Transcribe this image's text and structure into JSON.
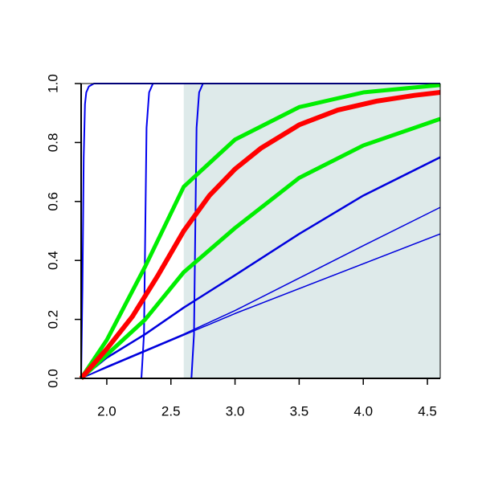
{
  "chart_data": {
    "type": "line",
    "xlim": [
      1.8,
      4.6
    ],
    "ylim": [
      0,
      1
    ],
    "xticks": [
      {
        "value": 2.0,
        "label": "2.0"
      },
      {
        "value": 2.5,
        "label": "2.5"
      },
      {
        "value": 3.0,
        "label": "3.0"
      },
      {
        "value": 3.5,
        "label": "3.5"
      },
      {
        "value": 4.0,
        "label": "4.0"
      },
      {
        "value": 4.5,
        "label": "4.5"
      }
    ],
    "yticks": [
      {
        "value": 0.0,
        "label": "0.0"
      },
      {
        "value": 0.2,
        "label": "0.2"
      },
      {
        "value": 0.4,
        "label": "0.4"
      },
      {
        "value": 0.6,
        "label": "0.6"
      },
      {
        "value": 0.8,
        "label": "0.8"
      },
      {
        "value": 1.0,
        "label": "1.0"
      }
    ],
    "shade": {
      "x": [
        2.6,
        4.6
      ],
      "y": [
        0,
        1
      ],
      "color": "#deeaea"
    },
    "series": [
      {
        "color": "#0000dd",
        "line_width": 1.5,
        "x": [
          1.8,
          3.0,
          4.6
        ],
        "values": [
          0,
          0.22,
          0.49
        ]
      },
      {
        "color": "#0000dd",
        "line_width": 1.5,
        "x": [
          1.8,
          2.0,
          2.6,
          3.0,
          3.5,
          4.0,
          4.6
        ],
        "values": [
          0,
          0.04,
          0.15,
          0.23,
          0.34,
          0.45,
          0.58
        ]
      },
      {
        "color": "#0000dd",
        "line_width": 2.5,
        "x": [
          1.8,
          2.0,
          2.3,
          2.6,
          3.0,
          3.5,
          4.0,
          4.6
        ],
        "values": [
          0,
          0.07,
          0.15,
          0.24,
          0.35,
          0.49,
          0.62,
          0.75
        ]
      },
      {
        "color": "#0000ee",
        "line_width": 2,
        "x": [
          1.8,
          1.81,
          1.82,
          1.83,
          1.84,
          1.86,
          1.9,
          4.6
        ],
        "values": [
          0,
          0.3,
          0.75,
          0.93,
          0.97,
          0.99,
          1.0,
          1.0
        ]
      },
      {
        "color": "#0000ee",
        "line_width": 2,
        "x": [
          1.8,
          2.27,
          2.29,
          2.3,
          2.31,
          2.33,
          2.36,
          4.6
        ],
        "values": [
          0,
          0.0,
          0.15,
          0.5,
          0.85,
          0.97,
          1.0,
          1.0
        ]
      },
      {
        "color": "#0000ee",
        "line_width": 2,
        "x": [
          1.8,
          2.66,
          2.68,
          2.69,
          2.7,
          2.72,
          2.75,
          4.6
        ],
        "values": [
          0,
          0.0,
          0.15,
          0.5,
          0.85,
          0.97,
          1.0,
          1.0
        ]
      },
      {
        "color": "#00ee00",
        "line_width": 5,
        "x": [
          1.8,
          2.0,
          2.3,
          2.6,
          3.0,
          3.5,
          4.0,
          4.6
        ],
        "values": [
          0,
          0.08,
          0.2,
          0.36,
          0.51,
          0.68,
          0.79,
          0.88
        ]
      },
      {
        "color": "#00ee00",
        "line_width": 5,
        "x": [
          1.8,
          2.0,
          2.3,
          2.6,
          3.0,
          3.5,
          4.0,
          4.6
        ],
        "values": [
          0,
          0.13,
          0.38,
          0.65,
          0.81,
          0.92,
          0.97,
          0.995
        ]
      },
      {
        "color": "#ff0000",
        "line_width": 6,
        "x": [
          1.8,
          2.0,
          2.2,
          2.4,
          2.6,
          2.8,
          3.0,
          3.2,
          3.5,
          3.8,
          4.1,
          4.4,
          4.6
        ],
        "values": [
          0,
          0.1,
          0.21,
          0.35,
          0.5,
          0.62,
          0.71,
          0.78,
          0.86,
          0.91,
          0.94,
          0.96,
          0.97
        ]
      }
    ]
  }
}
